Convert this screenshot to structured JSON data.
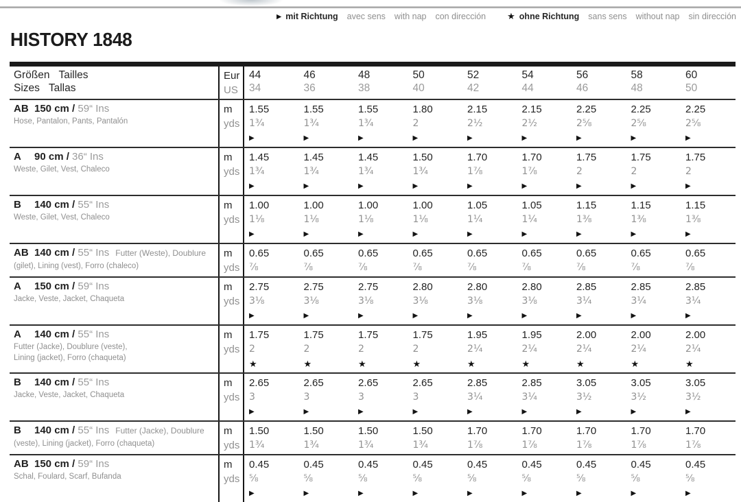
{
  "title": "HISTORY 1848",
  "legend": {
    "groups": [
      {
        "symbol": "▶",
        "symbol_name": "with-nap-triangle",
        "terms": [
          "mit Richtung",
          "avec sens",
          "with nap",
          "con dirección"
        ]
      },
      {
        "symbol": "★",
        "symbol_name": "without-nap-star",
        "terms": [
          "ohne Richtung",
          "sans sens",
          "without nap",
          "sin dirección"
        ]
      }
    ]
  },
  "table": {
    "header": {
      "label_line1": "Größen   Tailles",
      "label_line2": "Sizes   Tallas",
      "unit_top": "Eur",
      "unit_bottom": "US",
      "sizes_eur": [
        "44",
        "46",
        "48",
        "50",
        "52",
        "54",
        "56",
        "58",
        "60"
      ],
      "sizes_us": [
        "34",
        "36",
        "38",
        "40",
        "42",
        "44",
        "46",
        "48",
        "50"
      ]
    },
    "unit_top": "m",
    "unit_bottom": "yds",
    "rows": [
      {
        "view": "AB",
        "size": "150 cm /",
        "ins": "59“ Ins",
        "note": "",
        "desc": "Hose, Pantalon, Pants, Pantalón",
        "desc2": "",
        "m": [
          "1.55",
          "1.55",
          "1.55",
          "1.80",
          "2.15",
          "2.15",
          "2.25",
          "2.25",
          "2.25"
        ],
        "yds": [
          "1¾",
          "1¾",
          "1¾",
          "2",
          "2½",
          "2½",
          "2⅝",
          "2⅝",
          "2⅝"
        ],
        "symbol": "▶"
      },
      {
        "view": "A",
        "size": "90 cm /",
        "ins": "36“ Ins",
        "note": "",
        "desc": "Weste, Gilet, Vest, Chaleco",
        "desc2": "",
        "m": [
          "1.45",
          "1.45",
          "1.45",
          "1.50",
          "1.70",
          "1.70",
          "1.75",
          "1.75",
          "1.75"
        ],
        "yds": [
          "1¾",
          "1¾",
          "1¾",
          "1¾",
          "1⅞",
          "1⅞",
          "2",
          "2",
          "2"
        ],
        "symbol": "▶"
      },
      {
        "view": "B",
        "size": "140 cm /",
        "ins": "55“ Ins",
        "note": "",
        "desc": "Weste, Gilet, Vest, Chaleco",
        "desc2": "",
        "m": [
          "1.00",
          "1.00",
          "1.00",
          "1.00",
          "1.05",
          "1.05",
          "1.15",
          "1.15",
          "1.15"
        ],
        "yds": [
          "1⅛",
          "1⅛",
          "1⅛",
          "1⅛",
          "1¼",
          "1¼",
          "1⅜",
          "1⅜",
          "1⅜"
        ],
        "symbol": "▶"
      },
      {
        "view": "AB",
        "size": "140 cm /",
        "ins": "55“ Ins",
        "note": "Futter (Weste), Doublure",
        "desc": "(gilet), Lining (vest), Forro (chaleco)",
        "desc2": "",
        "m": [
          "0.65",
          "0.65",
          "0.65",
          "0.65",
          "0.65",
          "0.65",
          "0.65",
          "0.65",
          "0.65"
        ],
        "yds": [
          "⅞",
          "⅞",
          "⅞",
          "⅞",
          "⅞",
          "⅞",
          "⅞",
          "⅞",
          "⅞"
        ],
        "symbol": ""
      },
      {
        "view": "A",
        "size": "150 cm /",
        "ins": "59“ Ins",
        "note": "",
        "desc": "Jacke, Veste, Jacket, Chaqueta",
        "desc2": "",
        "m": [
          "2.75",
          "2.75",
          "2.75",
          "2.80",
          "2.80",
          "2.80",
          "2.85",
          "2.85",
          "2.85"
        ],
        "yds": [
          "3⅛",
          "3⅛",
          "3⅛",
          "3⅛",
          "3⅛",
          "3⅛",
          "3¼",
          "3¼",
          "3¼"
        ],
        "symbol": "▶"
      },
      {
        "view": "A",
        "size": "140 cm /",
        "ins": "55“ Ins",
        "note": "",
        "desc": "Futter (Jacke), Doublure (veste),",
        "desc2": "Lining (jacket), Forro (chaqueta)",
        "m": [
          "1.75",
          "1.75",
          "1.75",
          "1.75",
          "1.95",
          "1.95",
          "2.00",
          "2.00",
          "2.00"
        ],
        "yds": [
          "2",
          "2",
          "2",
          "2",
          "2¼",
          "2¼",
          "2¼",
          "2¼",
          "2¼"
        ],
        "symbol": "★"
      },
      {
        "view": "B",
        "size": "140 cm /",
        "ins": "55“ Ins",
        "note": "",
        "desc": "Jacke, Veste, Jacket, Chaqueta",
        "desc2": "",
        "m": [
          "2.65",
          "2.65",
          "2.65",
          "2.65",
          "2.85",
          "2.85",
          "3.05",
          "3.05",
          "3.05"
        ],
        "yds": [
          "3",
          "3",
          "3",
          "3",
          "3¼",
          "3¼",
          "3½",
          "3½",
          "3½"
        ],
        "symbol": "▶"
      },
      {
        "view": "B",
        "size": "140 cm /",
        "ins": "55“ Ins",
        "note": "Futter (Jacke), Doublure",
        "desc": "(veste), Lining (jacket), Forro (chaqueta)",
        "desc2": "",
        "m": [
          "1.50",
          "1.50",
          "1.50",
          "1.50",
          "1.70",
          "1.70",
          "1.70",
          "1.70",
          "1.70"
        ],
        "yds": [
          "1¾",
          "1¾",
          "1¾",
          "1¾",
          "1⅞",
          "1⅞",
          "1⅞",
          "1⅞",
          "1⅞"
        ],
        "symbol": ""
      },
      {
        "view": "AB",
        "size": "150 cm /",
        "ins": "59“ Ins",
        "note": "",
        "desc": "Schal, Foulard, Scarf, Bufanda",
        "desc2": "",
        "m": [
          "0.45",
          "0.45",
          "0.45",
          "0.45",
          "0.45",
          "0.45",
          "0.45",
          "0.45",
          "0.45"
        ],
        "yds": [
          "⅝",
          "⅝",
          "⅝",
          "⅝",
          "⅝",
          "⅝",
          "⅝",
          "⅝",
          "⅝"
        ],
        "symbol": "▶"
      }
    ]
  }
}
